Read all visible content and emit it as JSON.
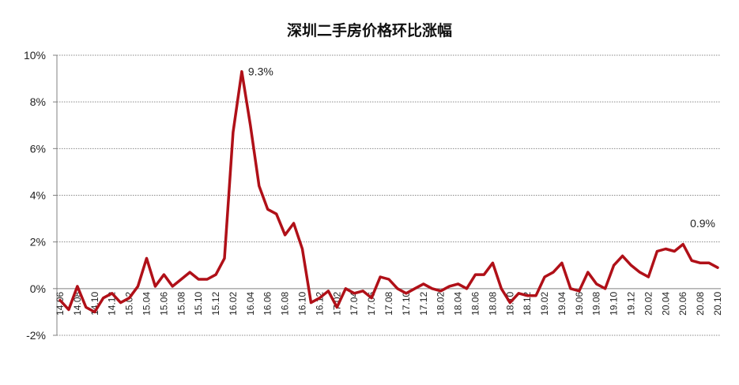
{
  "chart_data": {
    "type": "line",
    "title": "深圳二手房价格环比涨幅",
    "xlabel": "",
    "ylabel": "",
    "ylim": [
      -2,
      10
    ],
    "yticks": [
      "-2%",
      "0%",
      "2%",
      "4%",
      "6%",
      "8%",
      "10%"
    ],
    "ytick_values": [
      -2,
      0,
      2,
      4,
      6,
      8,
      10
    ],
    "grid": "horizontal dotted",
    "legend": "none",
    "line_color": "#B01018",
    "x": [
      "14.06",
      "14.07",
      "14.08",
      "14.09",
      "14.10",
      "14.11",
      "14.12",
      "15.01",
      "15.02",
      "15.03",
      "15.04",
      "15.05",
      "15.06",
      "15.07",
      "15.08",
      "15.09",
      "15.10",
      "15.11",
      "15.12",
      "16.01",
      "16.02",
      "16.03",
      "16.04",
      "16.05",
      "16.06",
      "16.07",
      "16.08",
      "16.09",
      "16.10",
      "16.11",
      "16.12",
      "17.01",
      "17.02",
      "17.03",
      "17.04",
      "17.05",
      "17.06",
      "17.07",
      "17.08",
      "17.09",
      "17.10",
      "17.11",
      "17.12",
      "18.01",
      "18.02",
      "18.03",
      "18.04",
      "18.05",
      "18.06",
      "18.07",
      "18.08",
      "18.09",
      "18.10",
      "18.11",
      "18.12",
      "19.01",
      "19.02",
      "19.03",
      "19.04",
      "19.05",
      "19.06",
      "19.07",
      "19.08",
      "19.09",
      "19.10",
      "19.11",
      "19.12",
      "20.01",
      "20.02",
      "20.03",
      "20.04",
      "20.05",
      "20.06",
      "20.07",
      "20.08",
      "20.09",
      "20.10"
    ],
    "xtick_labels": [
      "14.06",
      "14.08",
      "14.10",
      "14.12",
      "15.02",
      "15.04",
      "15.06",
      "15.08",
      "15.10",
      "15.12",
      "16.02",
      "16.04",
      "16.06",
      "16.08",
      "16.10",
      "16.12",
      "17.02",
      "17.04",
      "17.06",
      "17.08",
      "17.10",
      "17.12",
      "18.02",
      "18.04",
      "18.06",
      "18.08",
      "18.10",
      "18.12",
      "19.02",
      "19.04",
      "19.06",
      "19.08",
      "19.10",
      "19.12",
      "20.02",
      "20.04",
      "20.06",
      "20.08",
      "20.10"
    ],
    "xtick_display": [
      "14.06",
      "14.08",
      "14.10",
      "14.12",
      "15.02",
      "15.04",
      "15.06",
      "15.08",
      "15.10",
      "15.12",
      "16.02",
      "16.04",
      "16.06",
      "16.08",
      "16.10",
      "16.12",
      "17.02",
      "17.04",
      "17.06",
      "17.08",
      "17.10",
      "17.12",
      "18.02",
      "18.04",
      "18.06",
      "18.08",
      "18.10",
      "18.12",
      "19.02",
      "19.04",
      "19.06",
      "19.08",
      "19.10",
      "19.12",
      "20.02",
      "20.04",
      "20.06",
      "20.08",
      "20.10"
    ],
    "series": [
      {
        "values": [
          -0.5,
          -0.9,
          0.1,
          -0.8,
          -1.0,
          -0.4,
          -0.2,
          -0.6,
          -0.4,
          0.1,
          1.3,
          0.1,
          0.6,
          0.1,
          0.4,
          0.7,
          0.4,
          0.4,
          0.6,
          1.3,
          6.7,
          9.3,
          7.0,
          4.4,
          3.4,
          3.2,
          2.3,
          2.8,
          1.7,
          -0.6,
          -0.4,
          -0.1,
          -0.8,
          0.0,
          -0.2,
          -0.1,
          -0.4,
          0.5,
          0.4,
          0.0,
          -0.2,
          0.0,
          0.2,
          0.0,
          -0.1,
          0.1,
          0.2,
          0.0,
          0.6,
          0.6,
          1.1,
          0.0,
          -0.6,
          -0.2,
          -0.3,
          -0.3,
          0.5,
          0.7,
          1.1,
          0.0,
          -0.1,
          0.7,
          0.2,
          0.0,
          1.0,
          1.4,
          1.0,
          0.7,
          0.5,
          1.6,
          1.7,
          1.6,
          1.9,
          1.2,
          1.1,
          1.1,
          0.9
        ]
      }
    ],
    "annotations": [
      {
        "label": "9.3%",
        "x": "16.03",
        "y": 9.3
      },
      {
        "label": "0.9%",
        "x": "20.10",
        "y": 0.9
      }
    ]
  }
}
